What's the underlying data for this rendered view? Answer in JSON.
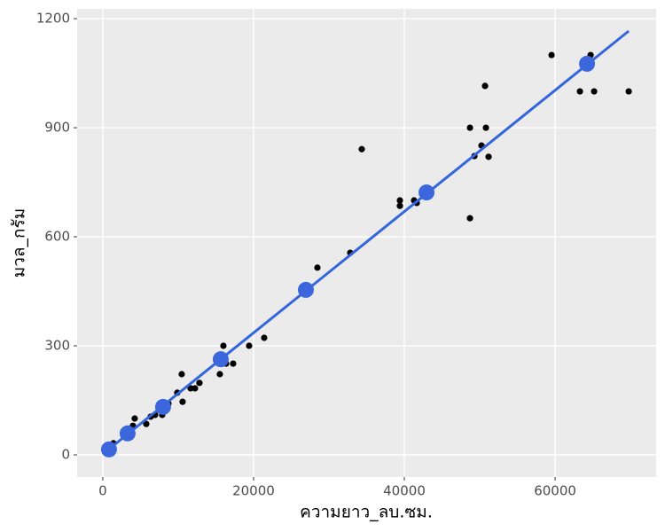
{
  "chart_data": {
    "type": "scatter",
    "x_label": "ความยาว_ลบ.ซม.",
    "y_label": "มวล_กรัม",
    "xlim": [
      -3400,
      73400
    ],
    "ylim": [
      -61,
      1227
    ],
    "xticks": [
      0,
      20000,
      40000,
      60000
    ],
    "yticks": [
      0,
      300,
      600,
      900,
      1200
    ],
    "grid": true,
    "series": [
      {
        "style": "dot",
        "color": "#000000",
        "x": [
          824,
          1412,
          4000,
          4235,
          5765,
          6353,
          6941,
          7882,
          8118,
          8706,
          9882,
          10471,
          10588,
          11647,
          12235,
          12824,
          15529,
          16000,
          16353,
          17294,
          19412,
          21412,
          28471,
          32824,
          34353,
          39412,
          39412,
          41294,
          41647,
          48706,
          48706,
          49294,
          50235,
          50706,
          50824,
          51176,
          59529,
          63294,
          64706,
          65176,
          69765
        ],
        "values": [
          15,
          32,
          80,
          100,
          85,
          105,
          110,
          110,
          124,
          141,
          171,
          222,
          146,
          183,
          183,
          198,
          222,
          300,
          251,
          251,
          300,
          322,
          515,
          556,
          841,
          700,
          685,
          700,
          693,
          900,
          651,
          822,
          851,
          1015,
          900,
          820,
          1100,
          1000,
          1100,
          1000,
          1000
        ]
      },
      {
        "style": "line",
        "color": "#3366dd",
        "x": [
          0,
          69765
        ],
        "values": [
          2,
          1166
        ]
      },
      {
        "style": "big-dot",
        "color": "#3b66dc",
        "x": [
          824,
          3294,
          8000,
          15647,
          26941,
          42941,
          64235
        ],
        "values": [
          15,
          59,
          132,
          263,
          454,
          722,
          1076
        ]
      }
    ]
  }
}
